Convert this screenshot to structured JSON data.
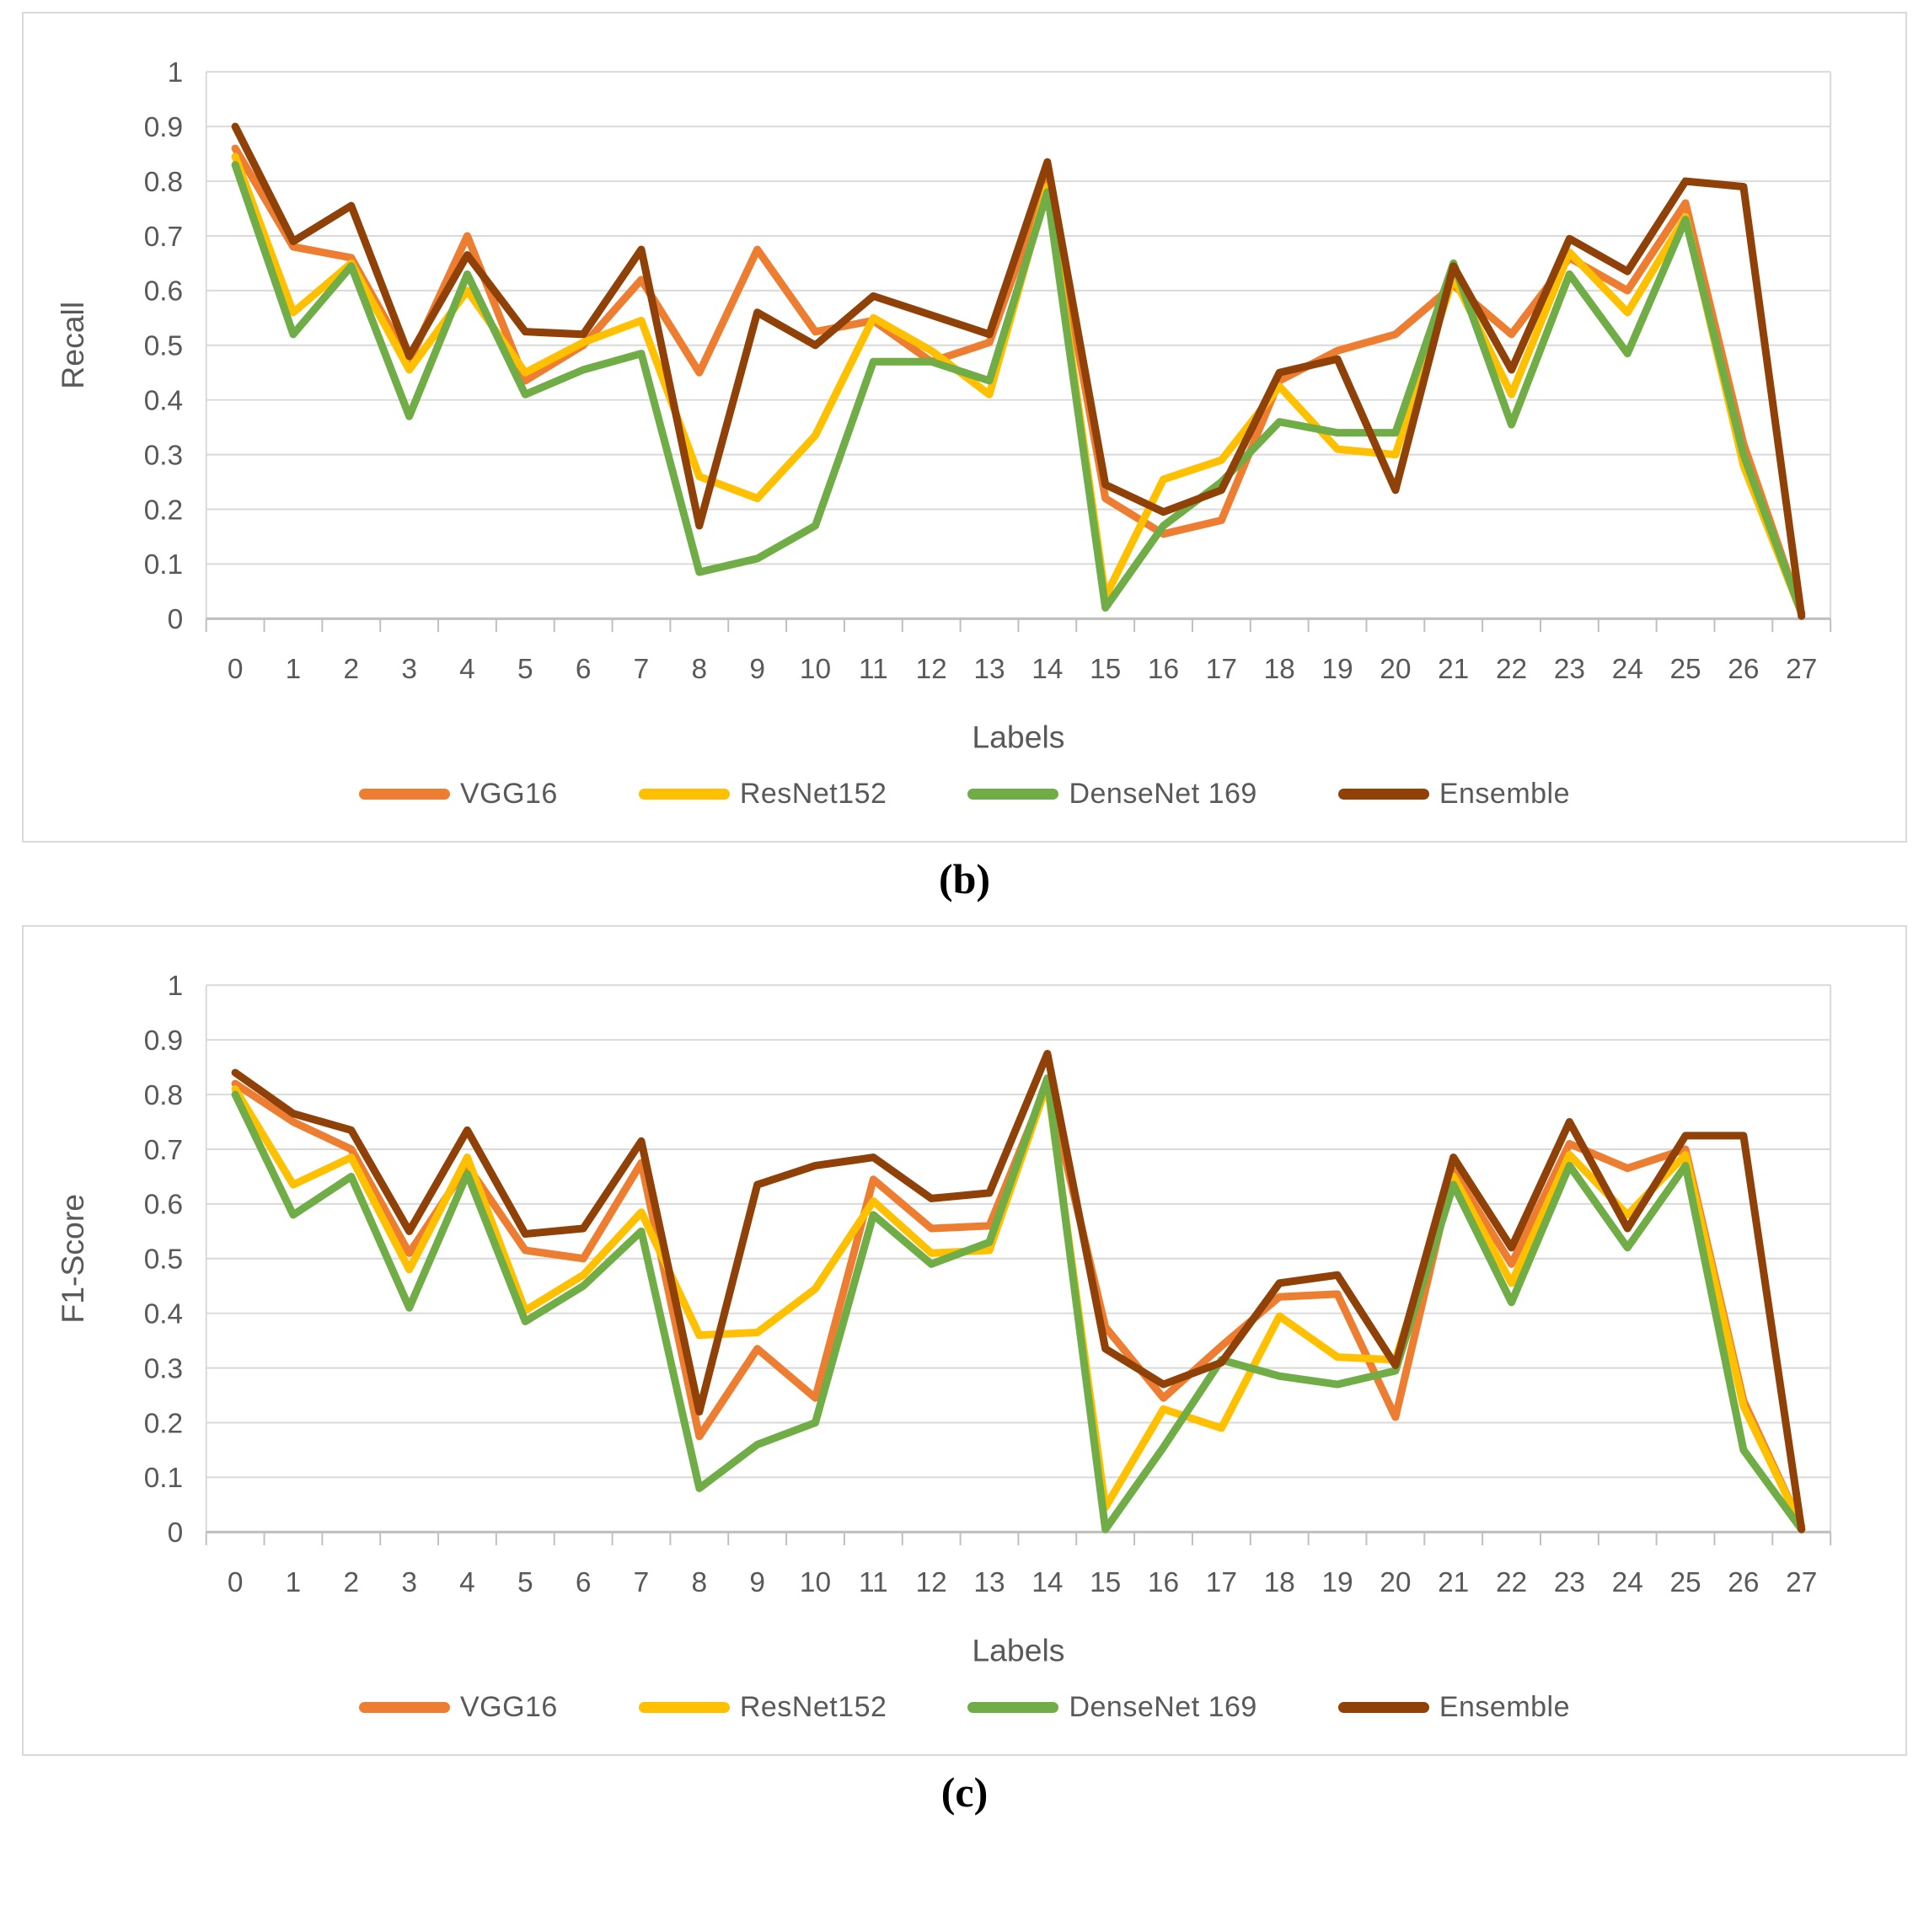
{
  "captions": [
    "(b)",
    "(c)"
  ],
  "chart_data": [
    {
      "type": "line",
      "title": "",
      "xlabel": "Labels",
      "ylabel": "Recall",
      "categories": [
        "0",
        "1",
        "2",
        "3",
        "4",
        "5",
        "6",
        "7",
        "8",
        "9",
        "10",
        "11",
        "12",
        "13",
        "14",
        "15",
        "16",
        "17",
        "18",
        "19",
        "20",
        "21",
        "22",
        "23",
        "24",
        "25",
        "26",
        "27"
      ],
      "ylim": [
        0,
        1
      ],
      "ytick_step": 0.1,
      "grid": "horizontal",
      "legend_position": "bottom",
      "series": [
        {
          "name": "VGG16",
          "color": "#ED7D31",
          "values": [
            0.86,
            0.68,
            0.66,
            0.47,
            0.7,
            0.435,
            0.5,
            0.62,
            0.45,
            0.675,
            0.525,
            0.545,
            0.47,
            0.505,
            0.8,
            0.22,
            0.155,
            0.18,
            0.435,
            0.49,
            0.52,
            0.61,
            0.52,
            0.66,
            0.6,
            0.76,
            0.32,
            0.01
          ]
        },
        {
          "name": "ResNet152",
          "color": "#FFC000",
          "values": [
            0.845,
            0.56,
            0.65,
            0.455,
            0.6,
            0.45,
            0.505,
            0.545,
            0.26,
            0.22,
            0.335,
            0.55,
            0.49,
            0.41,
            0.79,
            0.04,
            0.255,
            0.29,
            0.425,
            0.31,
            0.3,
            0.625,
            0.41,
            0.67,
            0.56,
            0.735,
            0.28,
            0.01
          ]
        },
        {
          "name": "DenseNet 169",
          "color": "#70AD47",
          "values": [
            0.83,
            0.52,
            0.645,
            0.37,
            0.63,
            0.41,
            0.455,
            0.485,
            0.085,
            0.11,
            0.17,
            0.47,
            0.47,
            0.435,
            0.78,
            0.02,
            0.17,
            0.25,
            0.36,
            0.34,
            0.34,
            0.65,
            0.355,
            0.63,
            0.485,
            0.73,
            0.3,
            0.01
          ]
        },
        {
          "name": "Ensemble",
          "color": "#8F4108",
          "values": [
            0.9,
            0.69,
            0.755,
            0.48,
            0.665,
            0.525,
            0.52,
            0.675,
            0.17,
            0.56,
            0.5,
            0.59,
            0.555,
            0.52,
            0.835,
            0.245,
            0.195,
            0.235,
            0.45,
            0.475,
            0.235,
            0.645,
            0.455,
            0.695,
            0.635,
            0.8,
            0.79,
            0.005
          ]
        }
      ]
    },
    {
      "type": "line",
      "title": "",
      "xlabel": "Labels",
      "ylabel": "F1-Score",
      "categories": [
        "0",
        "1",
        "2",
        "3",
        "4",
        "5",
        "6",
        "7",
        "8",
        "9",
        "10",
        "11",
        "12",
        "13",
        "14",
        "15",
        "16",
        "17",
        "18",
        "19",
        "20",
        "21",
        "22",
        "23",
        "24",
        "25",
        "26",
        "27"
      ],
      "ylim": [
        0,
        1
      ],
      "ytick_step": 0.1,
      "grid": "horizontal",
      "legend_position": "bottom",
      "series": [
        {
          "name": "VGG16",
          "color": "#ED7D31",
          "values": [
            0.82,
            0.75,
            0.7,
            0.51,
            0.67,
            0.515,
            0.5,
            0.675,
            0.175,
            0.335,
            0.245,
            0.645,
            0.555,
            0.56,
            0.82,
            0.375,
            0.245,
            0.34,
            0.43,
            0.435,
            0.21,
            0.66,
            0.49,
            0.71,
            0.665,
            0.7,
            0.24,
            0.01
          ]
        },
        {
          "name": "ResNet152",
          "color": "#FFC000",
          "values": [
            0.81,
            0.635,
            0.685,
            0.48,
            0.685,
            0.405,
            0.47,
            0.585,
            0.36,
            0.365,
            0.445,
            0.605,
            0.51,
            0.515,
            0.82,
            0.045,
            0.225,
            0.19,
            0.395,
            0.32,
            0.315,
            0.65,
            0.455,
            0.69,
            0.58,
            0.69,
            0.23,
            0.01
          ]
        },
        {
          "name": "DenseNet 169",
          "color": "#70AD47",
          "values": [
            0.8,
            0.58,
            0.65,
            0.41,
            0.655,
            0.385,
            0.45,
            0.55,
            0.08,
            0.16,
            0.2,
            0.58,
            0.49,
            0.53,
            0.83,
            0.005,
            0.155,
            0.315,
            0.285,
            0.27,
            0.295,
            0.635,
            0.42,
            0.67,
            0.52,
            0.67,
            0.15,
            0.005
          ]
        },
        {
          "name": "Ensemble",
          "color": "#8F4108",
          "values": [
            0.84,
            0.765,
            0.735,
            0.55,
            0.735,
            0.545,
            0.555,
            0.715,
            0.22,
            0.635,
            0.67,
            0.685,
            0.61,
            0.62,
            0.875,
            0.335,
            0.27,
            0.31,
            0.455,
            0.47,
            0.305,
            0.685,
            0.52,
            0.75,
            0.555,
            0.725,
            0.725,
            0.005
          ]
        }
      ]
    }
  ]
}
